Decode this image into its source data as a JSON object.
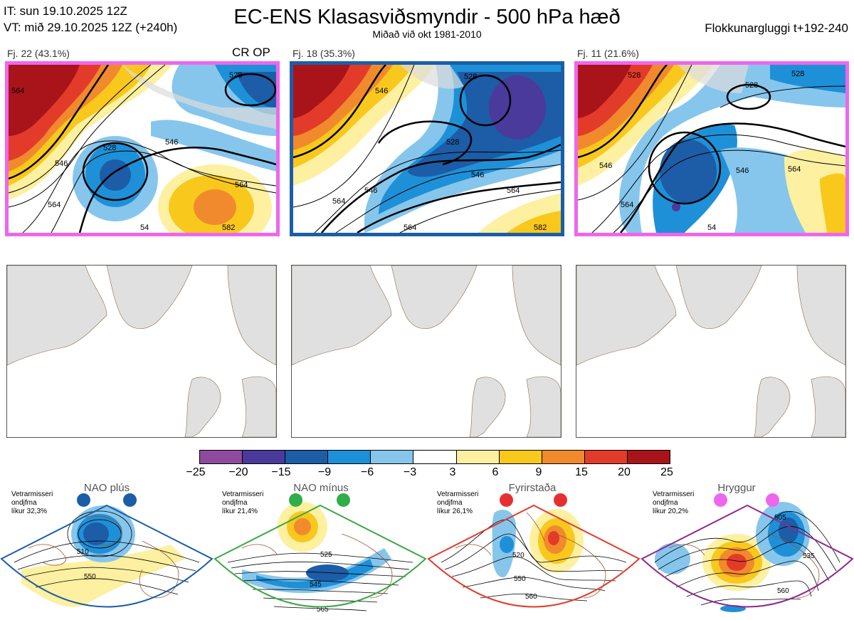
{
  "header": {
    "it_line": "IT: sun 19.10.2025 12Z",
    "vt_line": "VT: mið 29.10.2025 12Z  (+240h)",
    "title": "EC-ENS Klasasviðsmyndir - 500 hPa hæð",
    "subtitle": "Miðað við okt 1981-2010",
    "window": "Flokkunargluggi t+192-240"
  },
  "clusters": [
    {
      "label": "Fj. 22 (43.1%)",
      "tag": "CR OP",
      "border_color": "#ee66ee",
      "contours": [
        "564",
        "528",
        "528",
        "546",
        "546",
        "564",
        "564",
        "582",
        "54"
      ]
    },
    {
      "label": "Fj. 18 (35.3%)",
      "tag": "",
      "border_color": "#1b5ea8",
      "contours": [
        "546",
        "528",
        "528",
        "546",
        "546",
        "564",
        "564",
        "564",
        "582"
      ]
    },
    {
      "label": "Fj. 11 (21.6%)",
      "tag": "",
      "border_color": "#ee66ee",
      "contours": [
        "528",
        "528",
        "528",
        "546",
        "546",
        "564",
        "564",
        "54"
      ]
    }
  ],
  "colorbar": {
    "labels": [
      "−25",
      "−20",
      "−15",
      "−9",
      "−6",
      "−3",
      "3",
      "6",
      "9",
      "15",
      "20",
      "25"
    ],
    "colors": [
      "#8e4b9e",
      "#4a3a9c",
      "#1d5ca6",
      "#1e90d8",
      "#86c6ec",
      "#ffffff",
      "#fdf0a0",
      "#f9c81d",
      "#f08a2c",
      "#e33b2a",
      "#a8141a"
    ]
  },
  "regimes": [
    {
      "name": "NAO plús",
      "info": [
        "Vetrarmisseri",
        "ondjfma",
        "líkur 32,3%"
      ],
      "border_color": "#1b5ea8",
      "dot_color": "#1b5ea8",
      "contours": [
        "510",
        "550"
      ]
    },
    {
      "name": "NAO mínus",
      "info": [
        "Vetrarmisseri",
        "ondjfma",
        "líkur 21,4%"
      ],
      "border_color": "#3aa845",
      "dot_color": "#2fae4a",
      "contours": [
        "525",
        "545",
        "565"
      ]
    },
    {
      "name": "Fyrirstaða",
      "info": [
        "Vetrarmisseri",
        "ondjfma",
        "líkur 26,1%"
      ],
      "border_color": "#e33b2a",
      "dot_color": "#e63030",
      "contours": [
        "520",
        "550",
        "560"
      ]
    },
    {
      "name": "Hryggur",
      "info": [
        "Vetrarmisseri",
        "ondjfma",
        "líkur 20,2%"
      ],
      "border_color": "#8e2a8e",
      "dot_color": "#ee66ee",
      "contours": [
        "505",
        "535",
        "560"
      ]
    }
  ]
}
